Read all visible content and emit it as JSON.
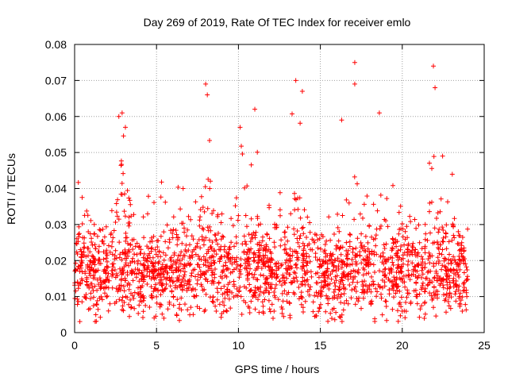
{
  "chart_data": {
    "type": "scatter",
    "title": "Day 269 of 2019, Rate Of TEC Index for receiver emlo",
    "xlabel": "GPS time / hours",
    "ylabel": "ROTI / TECUs",
    "xlim": [
      0,
      25
    ],
    "ylim": [
      0,
      0.08
    ],
    "x_ticks": [
      0,
      5,
      10,
      15,
      20,
      25
    ],
    "x_tick_labels": [
      "0",
      "5",
      "10",
      "15",
      "20",
      "25"
    ],
    "y_ticks": [
      0,
      0.01,
      0.02,
      0.03,
      0.04,
      0.05,
      0.06,
      0.07,
      0.08
    ],
    "y_tick_labels": [
      "0",
      "0.01",
      "0.02",
      "0.03",
      "0.04",
      "0.05",
      "0.06",
      "0.07",
      "0.08"
    ],
    "grid": true,
    "marker": "+",
    "color": "#ff0000",
    "x_data_range": [
      0,
      24
    ],
    "typical_range": [
      0.005,
      0.035
    ],
    "series": [
      {
        "name": "ROTI",
        "density_note": "Thousands of samples spanning 0–24 h; bulk of values 0.005–0.035 TECU/s",
        "peaks": [
          {
            "x": 2.7,
            "y": 0.06
          },
          {
            "x": 2.9,
            "y": 0.061
          },
          {
            "x": 3.1,
            "y": 0.057
          },
          {
            "x": 8.0,
            "y": 0.069
          },
          {
            "x": 8.1,
            "y": 0.066
          },
          {
            "x": 10.1,
            "y": 0.057
          },
          {
            "x": 11.0,
            "y": 0.062
          },
          {
            "x": 13.5,
            "y": 0.07
          },
          {
            "x": 13.9,
            "y": 0.067
          },
          {
            "x": 16.3,
            "y": 0.059
          },
          {
            "x": 17.1,
            "y": 0.075
          },
          {
            "x": 17.1,
            "y": 0.069
          },
          {
            "x": 18.6,
            "y": 0.061
          },
          {
            "x": 21.9,
            "y": 0.074
          },
          {
            "x": 22.0,
            "y": 0.068
          }
        ]
      }
    ]
  }
}
